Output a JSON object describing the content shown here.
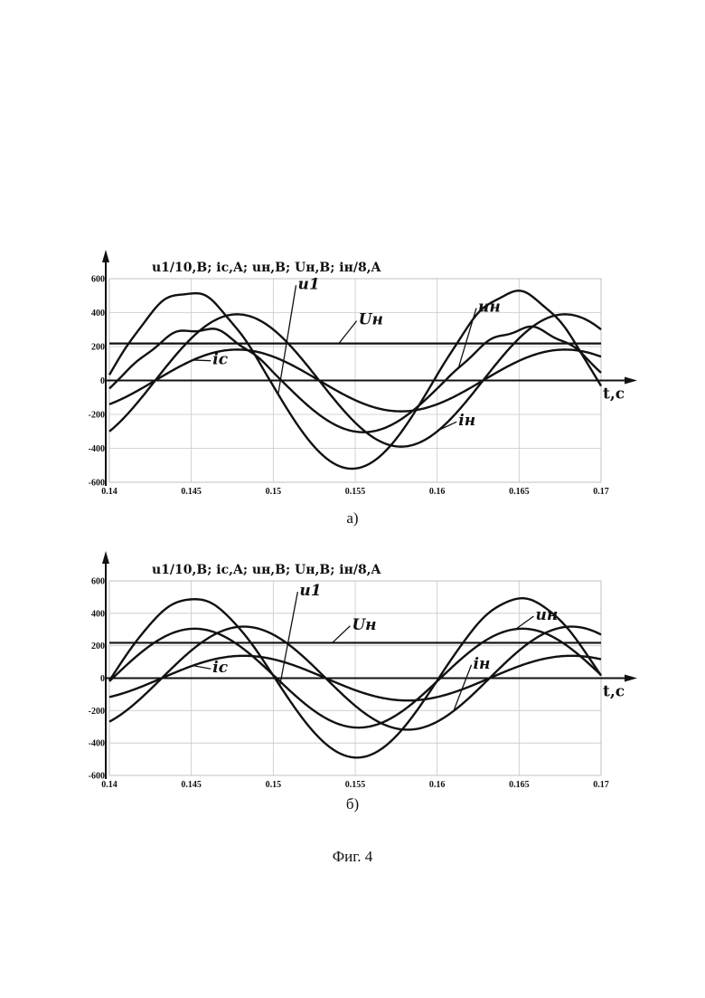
{
  "figure_caption": "Фиг. 4",
  "chart_data": [
    {
      "id": "a",
      "type": "line",
      "subcaption": "а)",
      "title": "u1/10,B; ic,A; uн,B; Uн,B; iн/8,A",
      "xlabel": "t,c",
      "ylabel": "",
      "xlim": [
        0.14,
        0.17
      ],
      "ylim": [
        -600,
        600
      ],
      "xticks": [
        0.14,
        0.145,
        0.15,
        0.155,
        0.16,
        0.165,
        0.17
      ],
      "xtick_labels": [
        "0.14",
        "0.145",
        "0.15",
        "0.155",
        "0.16",
        "0.165",
        "0.17"
      ],
      "yticks": [
        -600,
        -400,
        -200,
        0,
        200,
        400,
        600
      ],
      "ytick_labels": [
        "-600",
        "-400",
        "-200",
        "0",
        "200",
        "400",
        "600"
      ],
      "grid": true,
      "series": [
        {
          "name": "u1",
          "kind": "sine",
          "amplitude": 520,
          "period": 0.02,
          "zero_cross": 0.1398,
          "offset": 0,
          "noise": 0.6
        },
        {
          "name": "uн",
          "kind": "sine",
          "amplitude": 305,
          "period": 0.02,
          "zero_cross": 0.1405,
          "offset": 0,
          "noise": 0.8
        },
        {
          "name": "iн",
          "kind": "sine",
          "amplitude": 390,
          "period": 0.02,
          "zero_cross": 0.1428,
          "offset": 0,
          "noise": 0
        },
        {
          "name": "ic",
          "kind": "sine",
          "amplitude": 182,
          "period": 0.02,
          "zero_cross": 0.1428,
          "offset": 0,
          "noise": 0
        },
        {
          "name": "Uн",
          "kind": "constant",
          "value": 218
        }
      ],
      "labels": [
        {
          "text": "u1",
          "series": "u1",
          "x": 0.1515,
          "y": 540
        },
        {
          "text": "uн",
          "series": "uн",
          "x": 0.1625,
          "y": 405
        },
        {
          "text": "Uн",
          "series": "Uн",
          "x": 0.1552,
          "y": 330
        },
        {
          "text": "ic",
          "series": "ic",
          "x": 0.1463,
          "y": 95
        },
        {
          "text": "iн",
          "series": "iн",
          "x": 0.1613,
          "y": -265
        }
      ]
    },
    {
      "id": "b",
      "type": "line",
      "subcaption": "б)",
      "title": "u1/10,B; ic,A; uн,B; Uн,B; iн/8,A",
      "xlabel": "t,c",
      "ylabel": "",
      "xlim": [
        0.14,
        0.17
      ],
      "ylim": [
        -600,
        600
      ],
      "xticks": [
        0.14,
        0.145,
        0.15,
        0.155,
        0.16,
        0.165,
        0.17
      ],
      "xtick_labels": [
        "0.14",
        "0.145",
        "0.15",
        "0.155",
        "0.16",
        "0.165",
        "0.17"
      ],
      "yticks": [
        -600,
        -400,
        -200,
        0,
        200,
        400,
        600
      ],
      "ytick_labels": [
        "-600",
        "-400",
        "-200",
        "0",
        "200",
        "400",
        "600"
      ],
      "grid": true,
      "series": [
        {
          "name": "u1",
          "kind": "sine",
          "amplitude": 490,
          "period": 0.02,
          "zero_cross": 0.1401,
          "offset": 0,
          "noise": 0.2
        },
        {
          "name": "uн",
          "kind": "sine",
          "amplitude": 305,
          "period": 0.02,
          "zero_cross": 0.1402,
          "offset": 0,
          "noise": 0
        },
        {
          "name": "iн",
          "kind": "sine",
          "amplitude": 318,
          "period": 0.02,
          "zero_cross": 0.1432,
          "offset": 0,
          "noise": 0
        },
        {
          "name": "ic",
          "kind": "sine",
          "amplitude": 138,
          "period": 0.02,
          "zero_cross": 0.1432,
          "offset": 0,
          "noise": 0
        },
        {
          "name": "Uн",
          "kind": "constant",
          "value": 218
        }
      ],
      "labels": [
        {
          "text": "u1",
          "series": "u1",
          "x": 0.1516,
          "y": 510
        },
        {
          "text": "uн",
          "series": "uн",
          "x": 0.166,
          "y": 360
        },
        {
          "text": "Uн",
          "series": "Uн",
          "x": 0.1548,
          "y": 300
        },
        {
          "text": "ic",
          "series": "ic",
          "x": 0.1463,
          "y": 35
        },
        {
          "text": "iн",
          "series": "iн",
          "x": 0.1622,
          "y": 60
        }
      ]
    }
  ]
}
